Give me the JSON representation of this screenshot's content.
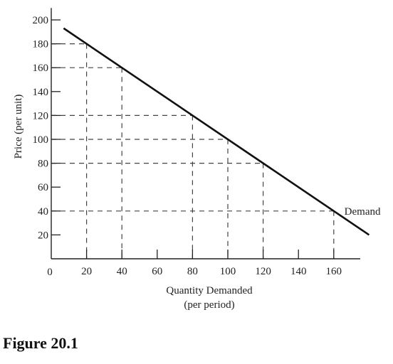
{
  "figure": {
    "caption": "Figure 20.1"
  },
  "chart_data": {
    "type": "line",
    "title": "",
    "xlabel_line1": "Quantity Demanded",
    "xlabel_line2": "(per period)",
    "ylabel": "Price (per unit)",
    "origin_label": "0",
    "xlim": [
      0,
      175
    ],
    "ylim": [
      0,
      210
    ],
    "x_ticks": [
      20,
      40,
      60,
      80,
      100,
      120,
      140,
      160
    ],
    "y_ticks": [
      20,
      40,
      60,
      80,
      100,
      120,
      140,
      160,
      180,
      200
    ],
    "series": [
      {
        "name": "Demand",
        "x": [
          7,
          0,
          20,
          40,
          80,
          100,
          120,
          160,
          180
        ],
        "y": [
          193,
          200,
          180,
          160,
          120,
          100,
          80,
          40,
          20
        ]
      }
    ],
    "reference_points": [
      {
        "x": 20,
        "y": 180
      },
      {
        "x": 40,
        "y": 160
      },
      {
        "x": 80,
        "y": 120
      },
      {
        "x": 100,
        "y": 100
      },
      {
        "x": 120,
        "y": 80
      },
      {
        "x": 160,
        "y": 40
      }
    ],
    "grid": false,
    "legend": "none"
  }
}
